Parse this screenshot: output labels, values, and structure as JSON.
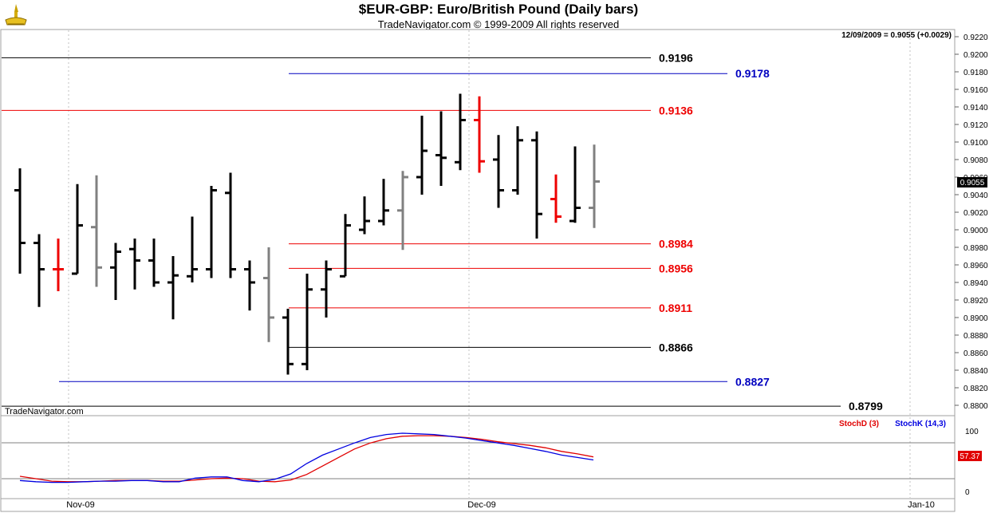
{
  "header": {
    "title": "$EUR-GBP:  Euro/British Pound  (Daily bars)",
    "subtitle": "TradeNavigator.com © 1999-2009 All rights reserved",
    "logo_icon": "trade-navigator-logo-icon"
  },
  "status": "12/09/2009 = 0.9055 (+0.0029)",
  "watermark": "TradeNavigator.com",
  "colors": {
    "black": "#000000",
    "red": "#ee0000",
    "blue": "#0000c0",
    "gray": "#808080",
    "stoch_d": "#e00000",
    "stoch_k": "#0000e0"
  },
  "chart_data": {
    "type": "ohlc",
    "y_ticks": [
      "0.9220",
      "0.9200",
      "0.9180",
      "0.9160",
      "0.9140",
      "0.9120",
      "0.9100",
      "0.9080",
      "0.9060",
      "0.9040",
      "0.9020",
      "0.9000",
      "0.8980",
      "0.8960",
      "0.8940",
      "0.8920",
      "0.8900",
      "0.8880",
      "0.8860",
      "0.8840",
      "0.8820",
      "0.8800"
    ],
    "ylim": [
      0.8795,
      0.923
    ],
    "current_price_label": "0.9055",
    "x_labels": [
      "Nov-09",
      "Dec-09",
      "Jan-10"
    ],
    "bars": [
      {
        "o": 0.9045,
        "h": 0.907,
        "l": 0.895,
        "c": 0.8985,
        "color": "black"
      },
      {
        "o": 0.8985,
        "h": 0.8995,
        "l": 0.8912,
        "c": 0.8955,
        "color": "black"
      },
      {
        "o": 0.8955,
        "h": 0.899,
        "l": 0.893,
        "c": 0.8955,
        "color": "red"
      },
      {
        "o": 0.895,
        "h": 0.9052,
        "l": 0.895,
        "c": 0.9005,
        "color": "black"
      },
      {
        "o": 0.9003,
        "h": 0.9062,
        "l": 0.8935,
        "c": 0.8957,
        "color": "gray"
      },
      {
        "o": 0.8957,
        "h": 0.8985,
        "l": 0.892,
        "c": 0.8975,
        "color": "black"
      },
      {
        "o": 0.8978,
        "h": 0.899,
        "l": 0.8932,
        "c": 0.8965,
        "color": "black"
      },
      {
        "o": 0.8965,
        "h": 0.899,
        "l": 0.8935,
        "c": 0.894,
        "color": "black"
      },
      {
        "o": 0.894,
        "h": 0.897,
        "l": 0.8898,
        "c": 0.8948,
        "color": "black"
      },
      {
        "o": 0.8947,
        "h": 0.9015,
        "l": 0.894,
        "c": 0.8955,
        "color": "black"
      },
      {
        "o": 0.8955,
        "h": 0.905,
        "l": 0.8945,
        "c": 0.9045,
        "color": "black"
      },
      {
        "o": 0.9042,
        "h": 0.9065,
        "l": 0.8945,
        "c": 0.8955,
        "color": "black"
      },
      {
        "o": 0.8955,
        "h": 0.8965,
        "l": 0.8908,
        "c": 0.894,
        "color": "black"
      },
      {
        "o": 0.8945,
        "h": 0.898,
        "l": 0.8872,
        "c": 0.89,
        "color": "gray"
      },
      {
        "o": 0.89,
        "h": 0.891,
        "l": 0.8835,
        "c": 0.8847,
        "color": "black"
      },
      {
        "o": 0.8847,
        "h": 0.895,
        "l": 0.884,
        "c": 0.8932,
        "color": "black"
      },
      {
        "o": 0.8932,
        "h": 0.8965,
        "l": 0.89,
        "c": 0.8955,
        "color": "black"
      },
      {
        "o": 0.8947,
        "h": 0.9018,
        "l": 0.8947,
        "c": 0.9005,
        "color": "black"
      },
      {
        "o": 0.9,
        "h": 0.9038,
        "l": 0.8995,
        "c": 0.901,
        "color": "black"
      },
      {
        "o": 0.901,
        "h": 0.9058,
        "l": 0.9005,
        "c": 0.9022,
        "color": "black"
      },
      {
        "o": 0.9022,
        "h": 0.9067,
        "l": 0.8977,
        "c": 0.906,
        "color": "gray"
      },
      {
        "o": 0.906,
        "h": 0.913,
        "l": 0.904,
        "c": 0.909,
        "color": "black"
      },
      {
        "o": 0.9085,
        "h": 0.9135,
        "l": 0.905,
        "c": 0.9082,
        "color": "black"
      },
      {
        "o": 0.9077,
        "h": 0.9155,
        "l": 0.9068,
        "c": 0.9125,
        "color": "black"
      },
      {
        "o": 0.9125,
        "h": 0.9152,
        "l": 0.9065,
        "c": 0.9078,
        "color": "red"
      },
      {
        "o": 0.908,
        "h": 0.9108,
        "l": 0.9025,
        "c": 0.9045,
        "color": "black"
      },
      {
        "o": 0.9045,
        "h": 0.9118,
        "l": 0.904,
        "c": 0.9102,
        "color": "black"
      },
      {
        "o": 0.9102,
        "h": 0.9112,
        "l": 0.899,
        "c": 0.9018,
        "color": "black"
      },
      {
        "o": 0.9035,
        "h": 0.9063,
        "l": 0.9008,
        "c": 0.9015,
        "color": "red"
      },
      {
        "o": 0.901,
        "h": 0.9095,
        "l": 0.9008,
        "c": 0.9025,
        "color": "black"
      },
      {
        "o": 0.9025,
        "h": 0.9097,
        "l": 0.9002,
        "c": 0.9055,
        "color": "gray"
      }
    ],
    "levels": [
      {
        "value": 0.9196,
        "label": "0.9196",
        "color": "black",
        "start_bar": 0,
        "end": "near"
      },
      {
        "value": 0.9178,
        "label": "0.9178",
        "color": "blue",
        "start_bar": 14,
        "end": "far"
      },
      {
        "value": 0.9136,
        "label": "0.9136",
        "color": "red",
        "start_bar": 0,
        "end": "near"
      },
      {
        "value": 0.8984,
        "label": "0.8984",
        "color": "red",
        "start_bar": 14,
        "end": "near"
      },
      {
        "value": 0.8956,
        "label": "0.8956",
        "color": "red",
        "start_bar": 14,
        "end": "near"
      },
      {
        "value": 0.8911,
        "label": "0.8911",
        "color": "red",
        "start_bar": 14,
        "end": "near"
      },
      {
        "value": 0.8866,
        "label": "0.8866",
        "color": "black",
        "start_bar": 14,
        "end": "near"
      },
      {
        "value": 0.8827,
        "label": "0.8827",
        "color": "blue",
        "start_bar": 2,
        "end": "far"
      },
      {
        "value": 0.8799,
        "label": "0.8799",
        "color": "black",
        "start_bar": 0,
        "end": "farthest"
      }
    ],
    "stochastic": {
      "legend_d": "StochD (3)",
      "legend_k": "StochK (14,3)",
      "y_ticks": [
        "100",
        "0"
      ],
      "ylim": [
        0,
        100
      ],
      "current_label": "57.37",
      "stoch_d": [
        25,
        21,
        17,
        16,
        16,
        17,
        18,
        18,
        18,
        17,
        17,
        19,
        21,
        22,
        21,
        17,
        16,
        19,
        28,
        42,
        56,
        70,
        80,
        87,
        91,
        92,
        92,
        91,
        89,
        86,
        82,
        79,
        76,
        72,
        66,
        62,
        57
      ],
      "stoch_k": [
        18,
        16,
        15,
        15,
        16,
        17,
        17,
        18,
        18,
        16,
        16,
        22,
        24,
        24,
        18,
        16,
        20,
        29,
        46,
        60,
        70,
        80,
        89,
        94,
        96,
        95,
        94,
        91,
        88,
        84,
        80,
        76,
        71,
        66,
        60,
        56,
        52
      ]
    }
  }
}
